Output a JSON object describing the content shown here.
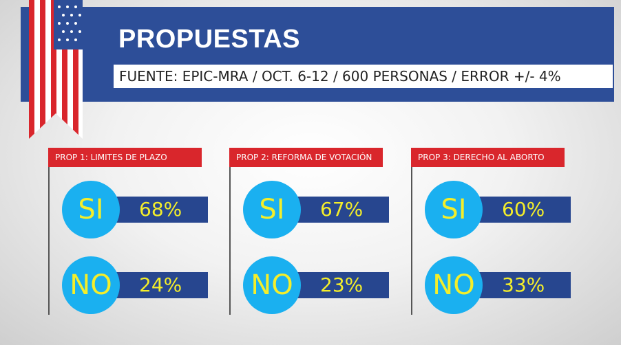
{
  "header": {
    "title": "PROPUESTAS",
    "source": "FUENTE: EPIC-MRA / OCT. 6-12 / 600 PERSONAS / ERROR +/- 4%"
  },
  "panels": [
    {
      "title": "PROP 1: LIMITES DE PLAZO",
      "rows": [
        {
          "label": "SI",
          "value": "68%"
        },
        {
          "label": "NO",
          "value": "24%"
        }
      ]
    },
    {
      "title": "PROP 2: REFORMA DE VOTACIÓN",
      "rows": [
        {
          "label": "SI",
          "value": "67%"
        },
        {
          "label": "NO",
          "value": "23%"
        }
      ]
    },
    {
      "title": "PROP 3: DERECHO AL ABORTO",
      "rows": [
        {
          "label": "SI",
          "value": "60%"
        },
        {
          "label": "NO",
          "value": "33%"
        }
      ]
    }
  ]
}
